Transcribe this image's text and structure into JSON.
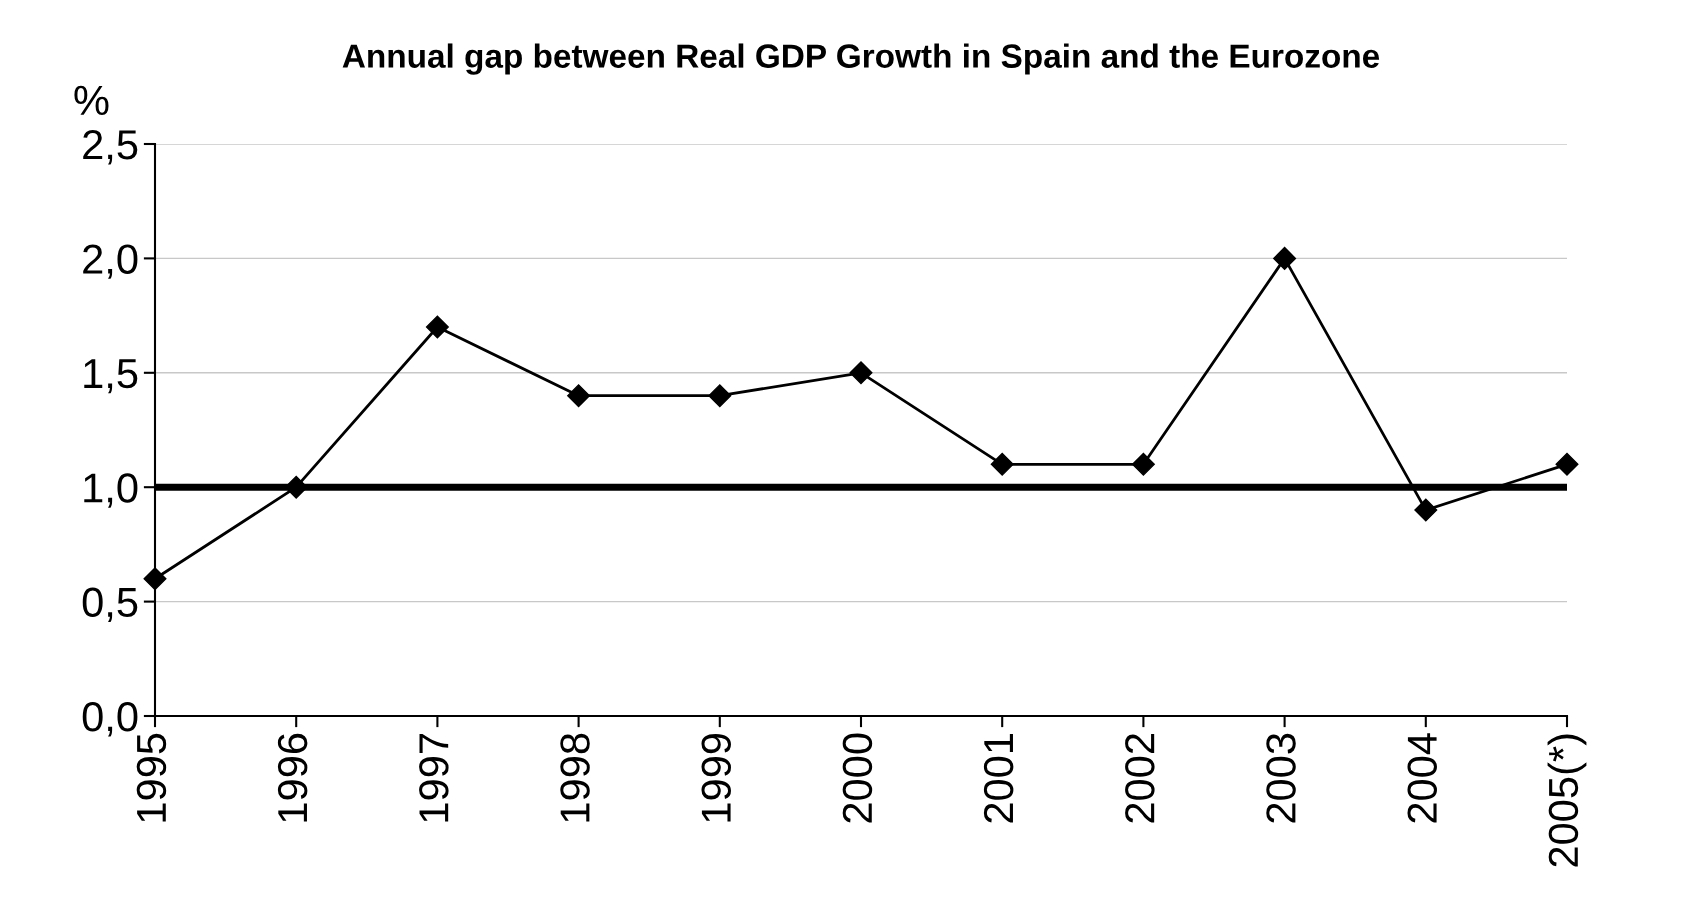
{
  "chart_data": {
    "type": "line",
    "title": "Annual gap between Real GDP Growth in Spain and the Eurozone",
    "ylabel": "%",
    "categories": [
      "1995",
      "1996",
      "1997",
      "1998",
      "1999",
      "2000",
      "2001",
      "2002",
      "2003",
      "2004",
      "2005(*)"
    ],
    "series": [
      {
        "color": "#000000",
        "values": [
          0.6,
          1.0,
          1.7,
          1.4,
          1.4,
          1.5,
          1.1,
          1.1,
          2.0,
          0.9,
          1.1
        ]
      }
    ],
    "ylim": [
      0,
      2.5
    ],
    "yticks": [
      {
        "value": 0,
        "label": "0,0"
      },
      {
        "value": 0.5,
        "label": "0,5"
      },
      {
        "value": 1.0,
        "label": "1,0"
      },
      {
        "value": 1.5,
        "label": "1,5"
      },
      {
        "value": 2.0,
        "label": "2,0"
      },
      {
        "value": 2.5,
        "label": "2,5"
      }
    ],
    "ref_lines": [
      {
        "axis": "y",
        "value": 1.0,
        "color": "#000000"
      }
    ],
    "grid": "y",
    "marker": "diamond",
    "line_style": "solid"
  }
}
